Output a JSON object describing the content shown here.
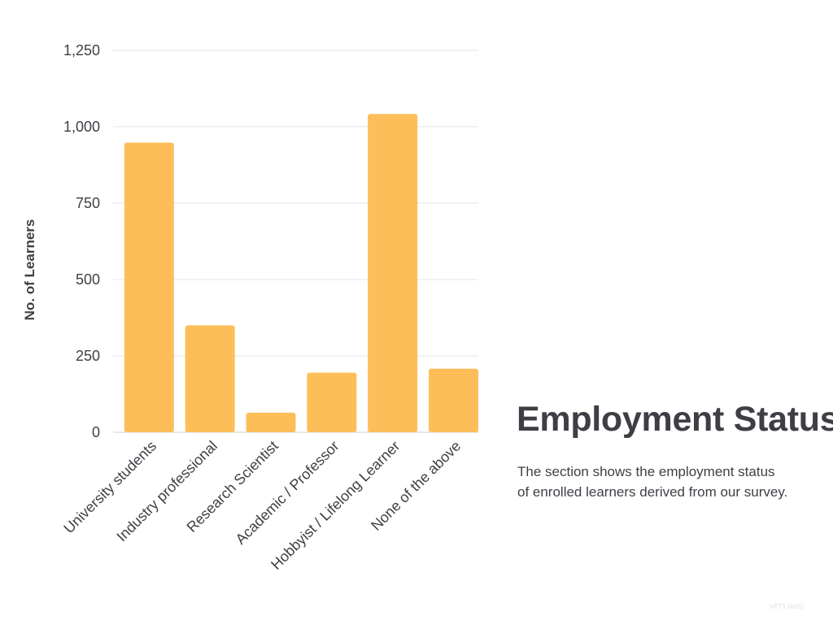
{
  "chart_data": {
    "type": "bar",
    "categories": [
      "University students",
      "Industry professional",
      "Research Scientist",
      "Academic / Professor",
      "Hobbyist / Lifelong Learner",
      "None of the above"
    ],
    "values": [
      948,
      350,
      64,
      195,
      1042,
      208
    ],
    "ylabel": "No. of Learners",
    "xlabel": "",
    "ylim": [
      0,
      1250
    ],
    "yticks": [
      0,
      250,
      500,
      750,
      1000,
      1250
    ],
    "ytick_labels": [
      "0",
      "250",
      "500",
      "750",
      "1,000",
      "1,250"
    ],
    "grid": true,
    "bar_color": "#fdbe5a",
    "grid_color": "#e6e6e6"
  },
  "section": {
    "title": "Employment Status",
    "description_lines": [
      "The section shows the employment status",
      "of enrolled learners derived from our survey."
    ]
  },
  "footer": {
    "watermark": "VPT1 (edX)"
  }
}
